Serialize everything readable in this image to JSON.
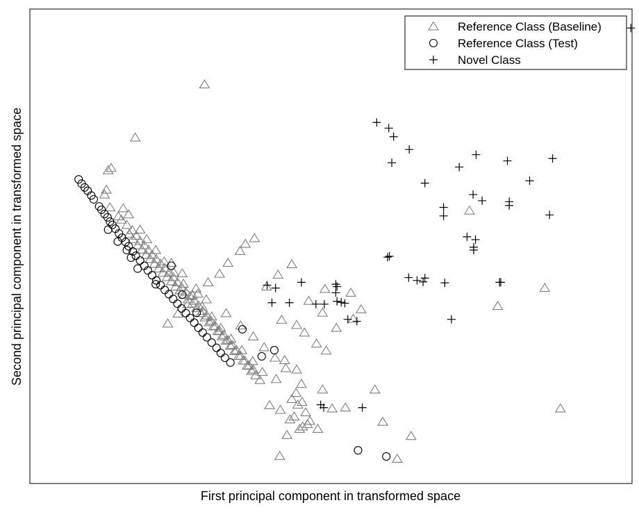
{
  "chart_data": {
    "type": "scatter",
    "title": "",
    "xlabel": "First principal component in transformed space",
    "ylabel": "Second principal component in transformed space",
    "xlim": [
      0,
      100
    ],
    "ylim": [
      0,
      100
    ],
    "grid": false,
    "legend": {
      "position": "top-right"
    },
    "series": [
      {
        "name": "Reference Class (Baseline)",
        "marker": "triangle",
        "color": "#7f7f7f",
        "x": [
          29.0,
          17.5,
          13.5,
          13.0,
          12.7,
          12.4,
          13.3,
          14.7,
          15.2,
          16.1,
          17.0,
          17.7,
          18.3,
          19.0,
          19.7,
          20.3,
          21.0,
          21.7,
          22.4,
          23.1,
          23.8,
          24.5,
          25.2,
          25.9,
          26.6,
          27.3,
          28.0,
          28.7,
          29.4,
          30.1,
          30.8,
          31.5,
          32.2,
          32.9,
          33.6,
          34.3,
          35.0,
          35.7,
          36.4,
          37.1,
          16.5,
          17.1,
          17.9,
          18.6,
          19.3,
          20.0,
          20.7,
          21.4,
          22.1,
          22.8,
          23.5,
          24.2,
          24.9,
          25.6,
          26.3,
          27.0,
          27.7,
          28.4,
          29.1,
          29.8,
          30.5,
          31.2,
          31.9,
          32.6,
          33.3,
          34.0,
          34.7,
          35.4,
          36.1,
          36.8,
          37.5,
          38.2,
          15.5,
          16.4,
          18.3,
          19.4,
          20.9,
          22.3,
          23.9,
          25.5,
          27.0,
          28.6,
          30.2,
          31.7,
          33.4,
          35.2,
          37.0,
          38.6,
          23.5,
          25.3,
          27.6,
          29.3,
          32.6,
          35.0,
          37.1,
          38.9,
          40.7,
          42.5,
          37.3,
          35.8,
          34.9,
          32.9,
          31.5,
          29.6,
          27.9,
          26.2,
          24.6,
          22.9,
          39.3,
          41.2,
          43.5,
          41.8,
          44.3,
          49.0,
          46.3,
          48.6,
          53.3,
          55.0,
          53.7,
          50.9,
          49.2,
          47.6,
          45.6,
          44.3,
          42.3,
          40.9,
          39.8,
          41.6,
          43.2,
          45.3,
          47.8,
          50.2,
          52.4,
          57.3,
          58.6,
          63.3,
          44.2,
          45.1,
          43.5,
          44.5,
          45.8,
          46.5,
          44.8,
          43.9,
          45.2,
          46.1,
          42.7,
          48.6,
          85.5,
          77.7,
          88.1,
          73.0,
          61.0,
          41.5
        ],
        "y": [
          84.1,
          72.9,
          66.5,
          66.0,
          61.9,
          60.9,
          58.2,
          56.3,
          55.6,
          54.5,
          53.4,
          52.2,
          51.1,
          50.2,
          49.2,
          48.2,
          47.3,
          46.3,
          45.4,
          44.4,
          43.5,
          42.4,
          41.4,
          40.4,
          39.5,
          38.5,
          37.5,
          36.4,
          35.4,
          34.3,
          33.2,
          32.2,
          31.3,
          30.2,
          29.2,
          28.1,
          26.9,
          25.9,
          24.9,
          24.0,
          52.6,
          51.5,
          50.2,
          49.3,
          48.2,
          47.3,
          46.3,
          45.3,
          44.4,
          43.5,
          42.6,
          41.5,
          40.7,
          39.8,
          38.8,
          37.9,
          37.0,
          35.9,
          35.0,
          34.0,
          33.1,
          32.1,
          31.0,
          30.1,
          29.0,
          27.9,
          26.9,
          25.9,
          24.8,
          23.7,
          22.8,
          21.8,
          58.0,
          56.7,
          53.5,
          51.5,
          49.2,
          46.8,
          44.5,
          42.1,
          39.7,
          37.3,
          35.2,
          32.8,
          30.5,
          28.1,
          25.8,
          23.5,
          46.5,
          44.3,
          41.1,
          38.8,
          35.9,
          33.3,
          31.0,
          28.7,
          26.5,
          24.3,
          51.7,
          50.5,
          49.0,
          46.5,
          44.2,
          42.4,
          40.0,
          37.8,
          35.8,
          33.7,
          41.5,
          44.0,
          46.2,
          34.5,
          33.4,
          41.0,
          38.5,
          36.0,
          40.2,
          36.7,
          34.7,
          32.8,
          28.0,
          29.5,
          31.8,
          24.0,
          26.0,
          22.0,
          16.5,
          15.5,
          13.5,
          12.0,
          11.5,
          15.8,
          16.0,
          19.8,
          13.0,
          10.0,
          19.1,
          21.0,
          17.8,
          16.6,
          15.0,
          13.2,
          11.5,
          14.1,
          17.2,
          12.5,
          10.2,
          19.8,
          41.2,
          37.4,
          15.8,
          57.5,
          5.2,
          5.8
        ]
      },
      {
        "name": "Reference Class (Test)",
        "marker": "circle",
        "color": "#000000",
        "x": [
          8.1,
          8.6,
          9.1,
          9.6,
          10.2,
          10.6,
          11.5,
          11.9,
          12.4,
          12.9,
          13.3,
          13.7,
          14.2,
          14.8,
          15.3,
          15.9,
          16.4,
          17.1,
          17.6,
          18.3,
          19.0,
          19.6,
          20.3,
          21.0,
          21.7,
          22.4,
          23.1,
          23.8,
          24.5,
          25.2,
          25.9,
          26.6,
          27.3,
          28.0,
          28.7,
          29.4,
          30.2,
          31.0,
          31.7,
          32.4,
          33.3,
          13.0,
          14.6,
          16.1,
          16.8,
          17.9,
          20.9,
          23.5,
          25.3,
          27.7,
          35.3,
          38.5,
          40.6,
          54.5,
          59.2
        ],
        "y": [
          64.1,
          63.2,
          62.4,
          61.7,
          60.7,
          59.9,
          58.4,
          57.7,
          56.8,
          56.1,
          55.2,
          54.5,
          53.7,
          52.7,
          51.8,
          50.9,
          50.0,
          48.9,
          48.0,
          47.0,
          45.9,
          44.9,
          43.9,
          42.8,
          41.8,
          40.8,
          39.9,
          38.9,
          37.9,
          36.9,
          35.9,
          34.9,
          33.9,
          32.8,
          31.8,
          30.8,
          29.7,
          28.6,
          27.5,
          26.5,
          25.5,
          53.5,
          51.0,
          49.2,
          47.6,
          45.3,
          42.0,
          45.9,
          39.8,
          36.0,
          32.5,
          26.8,
          28.1,
          7.0,
          5.7
        ]
      },
      {
        "name": "Novel Class",
        "marker": "plus",
        "color": "#000000",
        "x": [
          57.6,
          59.6,
          60.4,
          60.1,
          63.0,
          65.6,
          71.3,
          74.1,
          79.3,
          83.0,
          86.8,
          99.8,
          68.7,
          68.7,
          73.6,
          75.1,
          79.6,
          79.6,
          86.3,
          72.6,
          74.0,
          73.7,
          73.7,
          59.4,
          59.7,
          62.9,
          64.3,
          65.3,
          65.6,
          68.9,
          70.0,
          78.0,
          78.2,
          39.4,
          40.8,
          40.2,
          45.1,
          43.1,
          47.5,
          48.9,
          50.8,
          51.0,
          50.8,
          51.0,
          51.7,
          52.3,
          52.8,
          54.3,
          55.2,
          48.3,
          48.8
        ],
        "y": [
          76.1,
          74.9,
          73.1,
          67.6,
          70.4,
          63.3,
          66.7,
          69.3,
          68.0,
          63.8,
          68.5,
          96.0,
          58.2,
          56.4,
          60.9,
          59.6,
          59.4,
          58.6,
          56.6,
          52.0,
          51.4,
          49.8,
          49.2,
          47.7,
          47.9,
          43.4,
          42.8,
          42.5,
          43.3,
          42.3,
          34.6,
          42.4,
          42.4,
          41.8,
          41.2,
          38.1,
          42.4,
          38.1,
          37.8,
          37.8,
          40.2,
          41.5,
          42.0,
          38.4,
          38.2,
          38.0,
          34.6,
          34.2,
          16.0,
          16.6,
          16.0
        ]
      }
    ]
  }
}
